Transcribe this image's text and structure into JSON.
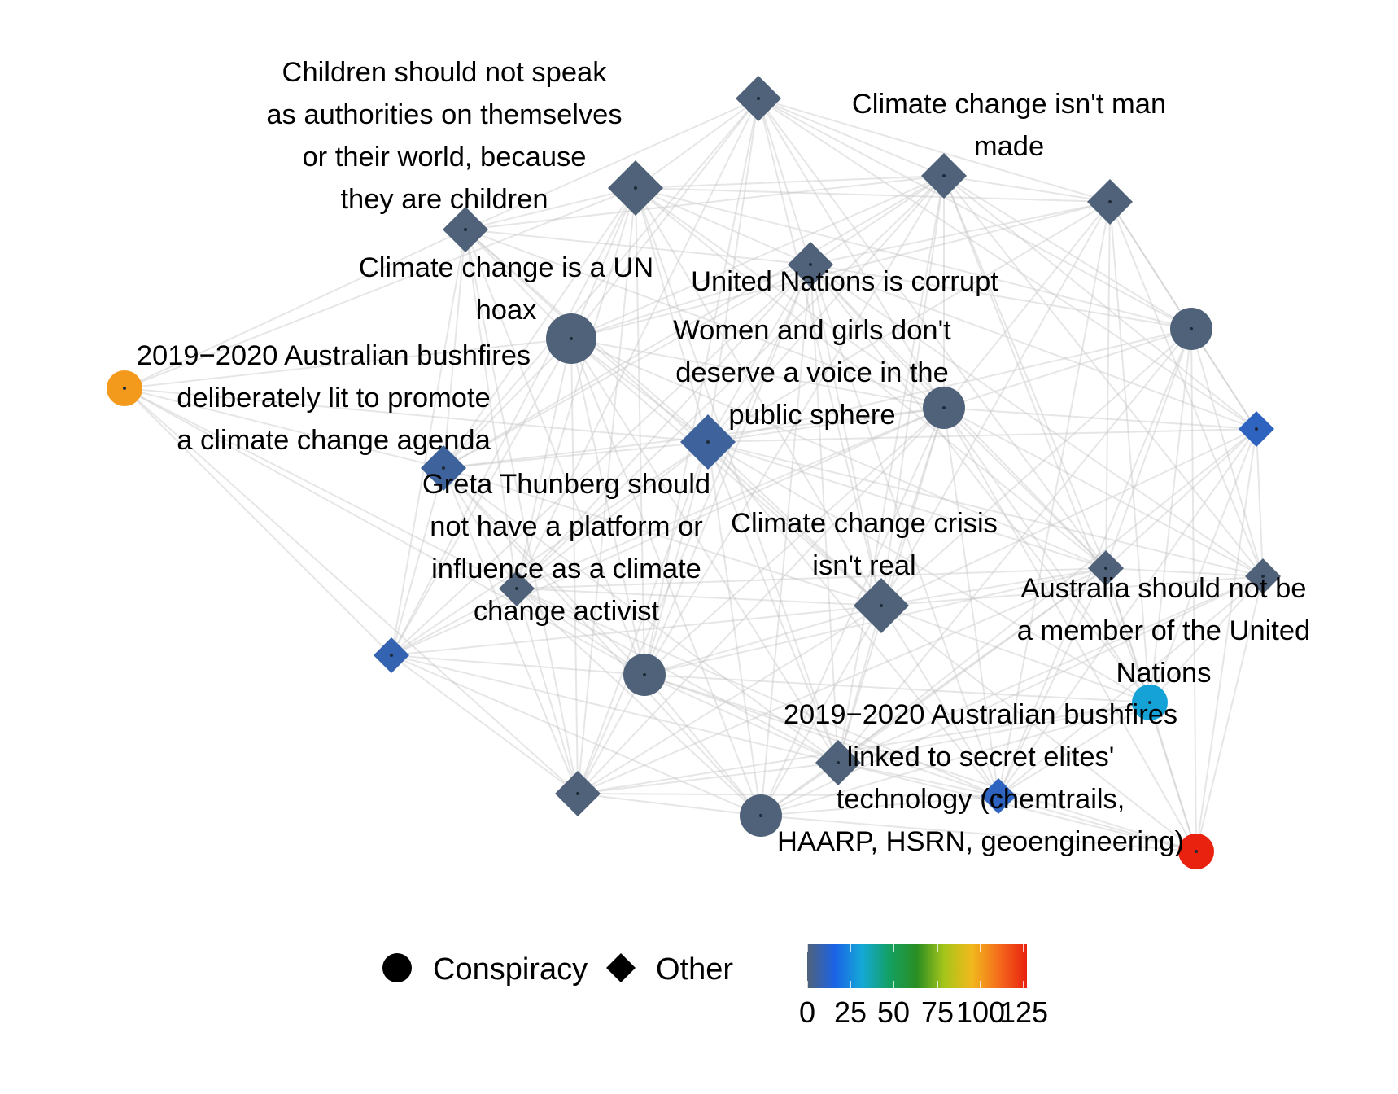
{
  "title": "",
  "legend": {
    "shape_items": [
      {
        "shape": "circle",
        "label": "Conspiracy"
      },
      {
        "shape": "diamond",
        "label": "Other"
      }
    ],
    "colorbar": {
      "ticks": [
        "0",
        "25",
        "50",
        "75",
        "100",
        "125"
      ],
      "range": [
        0,
        125
      ],
      "colors": [
        "#4f6279",
        "#1b63e6",
        "#14a8d6",
        "#13a062",
        "#2a8e22",
        "#a7c51a",
        "#f2b81c",
        "#f46a1c",
        "#e8220f"
      ]
    }
  },
  "nodes": [
    {
      "id": "n1",
      "shape": "diamond",
      "size": "medium",
      "value": 0,
      "label_lines": []
    },
    {
      "id": "n2",
      "shape": "diamond",
      "size": "large",
      "value": 0,
      "label_lines": []
    },
    {
      "id": "n3",
      "shape": "diamond",
      "size": "medium",
      "value": 0,
      "label_lines": [
        "Climate change isn't man",
        "made"
      ]
    },
    {
      "id": "n4",
      "shape": "diamond",
      "size": "medium",
      "value": 0,
      "label_lines": []
    },
    {
      "id": "n5",
      "shape": "diamond",
      "size": "medium",
      "value": 0,
      "label_lines": [
        "Children should not speak",
        "as authorities on themselves",
        "or their world, because",
        "they are children"
      ]
    },
    {
      "id": "n6",
      "shape": "diamond",
      "size": "medium",
      "value": 0,
      "label_lines": [
        "United Nations is corrupt"
      ]
    },
    {
      "id": "n7",
      "shape": "circle",
      "size": "medium",
      "value": 0,
      "label_lines": []
    },
    {
      "id": "n8",
      "shape": "circle",
      "size": "large",
      "value": 0,
      "label_lines": [
        "Climate change is a UN",
        "hoax"
      ]
    },
    {
      "id": "n9",
      "shape": "circle",
      "size": "small",
      "value": 100,
      "label_lines": [
        "2019−2020 Australian bushfires",
        "deliberately lit to promote",
        "a climate change agenda"
      ]
    },
    {
      "id": "n10",
      "shape": "circle",
      "size": "medium",
      "value": 0,
      "label_lines": [
        "Women and girls don't",
        "deserve a voice in the",
        "public sphere"
      ]
    },
    {
      "id": "n11",
      "shape": "diamond",
      "size": "small",
      "value": 10,
      "label_lines": []
    },
    {
      "id": "n12",
      "shape": "diamond",
      "size": "large",
      "value": 5,
      "label_lines": []
    },
    {
      "id": "n13",
      "shape": "diamond",
      "size": "medium",
      "value": 5,
      "label_lines": [
        "Greta Thunberg should",
        "not have a platform or",
        "influence as a climate",
        "change activist"
      ]
    },
    {
      "id": "n14",
      "shape": "diamond",
      "size": "small",
      "value": 0,
      "label_lines": []
    },
    {
      "id": "n15",
      "shape": "diamond",
      "size": "small",
      "value": 0,
      "label_lines": []
    },
    {
      "id": "n16",
      "shape": "diamond",
      "size": "small",
      "value": 0,
      "label_lines": []
    },
    {
      "id": "n17",
      "shape": "diamond",
      "size": "large",
      "value": 0,
      "label_lines": [
        "Climate change crisis",
        "isn't real"
      ]
    },
    {
      "id": "n18",
      "shape": "diamond",
      "size": "small",
      "value": 8,
      "label_lines": []
    },
    {
      "id": "n19",
      "shape": "circle",
      "size": "medium",
      "value": 0,
      "label_lines": []
    },
    {
      "id": "n20",
      "shape": "circle",
      "size": "small",
      "value": 30,
      "label_lines": [
        "Australia should not be",
        "a member of the United",
        "Nations"
      ]
    },
    {
      "id": "n21",
      "shape": "diamond",
      "size": "medium",
      "value": 0,
      "label_lines": []
    },
    {
      "id": "n22",
      "shape": "circle",
      "size": "medium",
      "value": 0,
      "label_lines": []
    },
    {
      "id": "n23",
      "shape": "diamond",
      "size": "medium",
      "value": 0,
      "label_lines": [
        "2019−2020 Australian bushfires",
        "linked to secret elites'",
        "technology (chemtrails,",
        "HAARP, HSRN, geoengineering)"
      ]
    },
    {
      "id": "n24",
      "shape": "diamond",
      "size": "small",
      "value": 10,
      "label_lines": []
    },
    {
      "id": "n25",
      "shape": "circle",
      "size": "small",
      "value": 125,
      "label_lines": []
    }
  ]
}
